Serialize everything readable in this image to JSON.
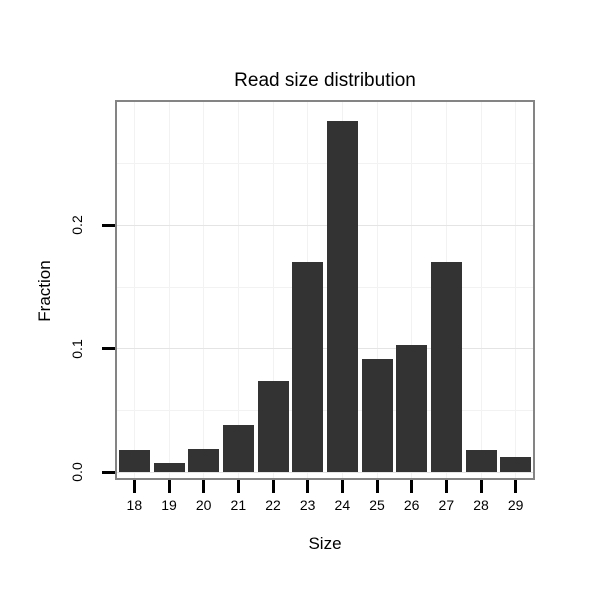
{
  "chart_data": {
    "type": "bar",
    "title": "Read size distribution",
    "xlabel": "Size",
    "ylabel": "Fraction",
    "categories": [
      "18",
      "19",
      "20",
      "21",
      "22",
      "23",
      "24",
      "25",
      "26",
      "27",
      "28",
      "29"
    ],
    "values": [
      0.018,
      0.007,
      0.019,
      0.038,
      0.074,
      0.17,
      0.285,
      0.092,
      0.103,
      0.17,
      0.018,
      0.012
    ],
    "ylim": [
      0,
      0.3
    ],
    "yticks": [
      0,
      0.1,
      0.2
    ],
    "ytick_labels": [
      "0.0",
      "0.1",
      "0.2"
    ],
    "minor_yticks": [
      0.05,
      0.15,
      0.25
    ],
    "grid": true,
    "legend": "none",
    "bar_color": "#333333",
    "panel_border_color": "#848484",
    "major_grid_color": "#e4e4e4",
    "minor_grid_color": "#f2f2f2",
    "tick_color": "#000000"
  }
}
